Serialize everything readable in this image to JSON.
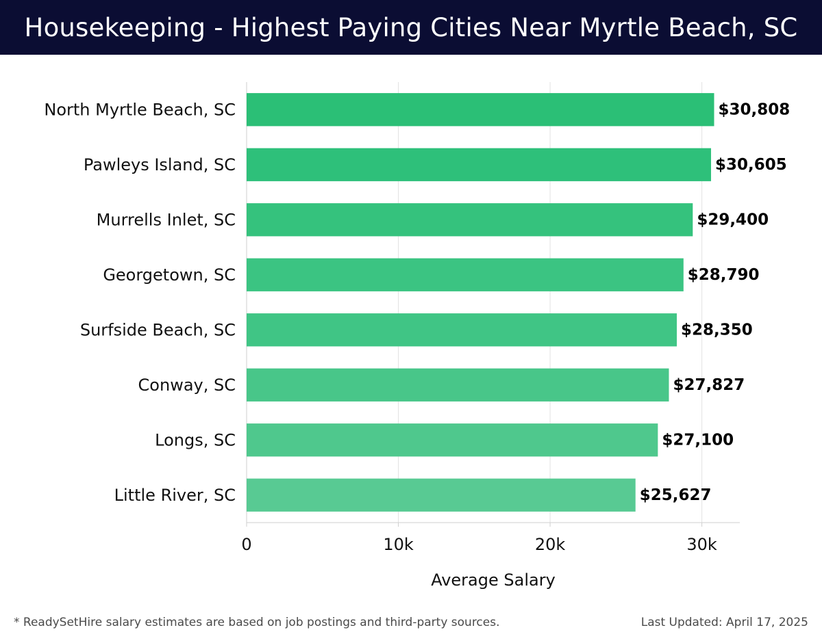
{
  "header": {
    "title": "Housekeeping - Highest Paying Cities Near Myrtle Beach, SC"
  },
  "chart_data": {
    "type": "bar",
    "orientation": "horizontal",
    "categories": [
      "North Myrtle Beach, SC",
      "Pawleys Island, SC",
      "Murrells Inlet, SC",
      "Georgetown, SC",
      "Surfside Beach, SC",
      "Conway, SC",
      "Longs, SC",
      "Little River, SC"
    ],
    "values": [
      30808,
      30605,
      29400,
      28790,
      28350,
      27827,
      27100,
      25627
    ],
    "value_labels": [
      "$30,808",
      "$30,605",
      "$29,400",
      "$28,790",
      "$28,350",
      "$27,827",
      "$27,100",
      "$25,627"
    ],
    "bar_colors": [
      "#2bbf76",
      "#2ec07a",
      "#35c27d",
      "#3bc482",
      "#40c585",
      "#48c689",
      "#4fc88d",
      "#58ca93"
    ],
    "xlabel": "Average Salary",
    "ylabel": "",
    "xlim": [
      0,
      32500
    ],
    "x_ticks": [
      0,
      10000,
      20000,
      30000
    ],
    "x_tick_labels": [
      "0",
      "10k",
      "20k",
      "30k"
    ],
    "grid": "vertical"
  },
  "footer": {
    "note": "* ReadySetHire salary estimates are based on job postings and third-party sources.",
    "updated": "Last Updated: April 17, 2025"
  }
}
